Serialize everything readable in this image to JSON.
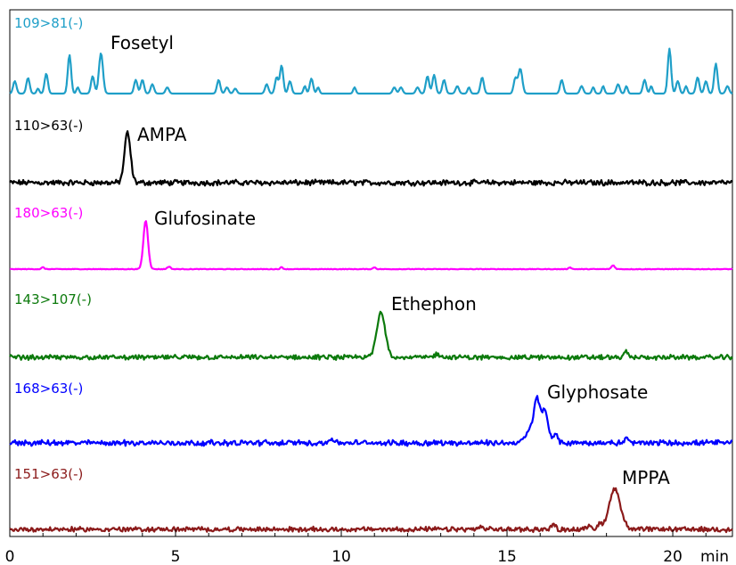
{
  "chart_data": {
    "type": "line",
    "x_unit": "min",
    "xlim": [
      0,
      21.8
    ],
    "x_ticks": [
      0,
      5,
      10,
      15,
      20
    ],
    "x_minor_ticks": [
      1,
      2,
      3,
      4,
      6,
      7,
      8,
      9,
      11,
      12,
      13,
      14,
      16,
      17,
      18,
      19,
      21
    ],
    "grid": false,
    "traces": [
      {
        "transition": "109>81(-)",
        "compound": "Fosetyl",
        "color": "#1F9FC8",
        "style": "sparse-noise",
        "peaks": [
          {
            "x": 0.15,
            "h": 0.2,
            "w": 0.05
          },
          {
            "x": 0.55,
            "h": 0.25,
            "w": 0.05
          },
          {
            "x": 0.85,
            "h": 0.08,
            "w": 0.04
          },
          {
            "x": 1.1,
            "h": 0.32,
            "w": 0.05
          },
          {
            "x": 1.8,
            "h": 0.62,
            "w": 0.05
          },
          {
            "x": 2.05,
            "h": 0.1,
            "w": 0.04
          },
          {
            "x": 2.5,
            "h": 0.28,
            "w": 0.05
          },
          {
            "x": 2.75,
            "h": 0.65,
            "w": 0.06
          },
          {
            "x": 3.8,
            "h": 0.22,
            "w": 0.05
          },
          {
            "x": 4.0,
            "h": 0.22,
            "w": 0.05
          },
          {
            "x": 4.3,
            "h": 0.15,
            "w": 0.05
          },
          {
            "x": 4.75,
            "h": 0.1,
            "w": 0.05
          },
          {
            "x": 6.3,
            "h": 0.22,
            "w": 0.05
          },
          {
            "x": 6.55,
            "h": 0.1,
            "w": 0.05
          },
          {
            "x": 6.8,
            "h": 0.08,
            "w": 0.05
          },
          {
            "x": 7.75,
            "h": 0.15,
            "w": 0.05
          },
          {
            "x": 8.05,
            "h": 0.26,
            "w": 0.05
          },
          {
            "x": 8.2,
            "h": 0.45,
            "w": 0.05
          },
          {
            "x": 8.45,
            "h": 0.2,
            "w": 0.05
          },
          {
            "x": 8.9,
            "h": 0.12,
            "w": 0.04
          },
          {
            "x": 9.1,
            "h": 0.24,
            "w": 0.05
          },
          {
            "x": 9.3,
            "h": 0.1,
            "w": 0.04
          },
          {
            "x": 10.4,
            "h": 0.1,
            "w": 0.04
          },
          {
            "x": 11.6,
            "h": 0.1,
            "w": 0.05
          },
          {
            "x": 11.8,
            "h": 0.1,
            "w": 0.05
          },
          {
            "x": 12.3,
            "h": 0.1,
            "w": 0.05
          },
          {
            "x": 12.6,
            "h": 0.28,
            "w": 0.05
          },
          {
            "x": 12.8,
            "h": 0.3,
            "w": 0.05
          },
          {
            "x": 13.1,
            "h": 0.22,
            "w": 0.05
          },
          {
            "x": 13.5,
            "h": 0.12,
            "w": 0.05
          },
          {
            "x": 13.85,
            "h": 0.1,
            "w": 0.04
          },
          {
            "x": 14.25,
            "h": 0.26,
            "w": 0.05
          },
          {
            "x": 15.25,
            "h": 0.24,
            "w": 0.05
          },
          {
            "x": 15.4,
            "h": 0.4,
            "w": 0.06
          },
          {
            "x": 16.65,
            "h": 0.22,
            "w": 0.05
          },
          {
            "x": 17.25,
            "h": 0.12,
            "w": 0.05
          },
          {
            "x": 17.6,
            "h": 0.1,
            "w": 0.04
          },
          {
            "x": 17.9,
            "h": 0.12,
            "w": 0.04
          },
          {
            "x": 18.35,
            "h": 0.15,
            "w": 0.05
          },
          {
            "x": 18.6,
            "h": 0.12,
            "w": 0.04
          },
          {
            "x": 19.15,
            "h": 0.22,
            "w": 0.05
          },
          {
            "x": 19.35,
            "h": 0.12,
            "w": 0.04
          },
          {
            "x": 19.9,
            "h": 0.72,
            "w": 0.05
          },
          {
            "x": 20.15,
            "h": 0.2,
            "w": 0.05
          },
          {
            "x": 20.4,
            "h": 0.12,
            "w": 0.04
          },
          {
            "x": 20.75,
            "h": 0.26,
            "w": 0.05
          },
          {
            "x": 21.0,
            "h": 0.2,
            "w": 0.05
          },
          {
            "x": 21.3,
            "h": 0.48,
            "w": 0.05
          },
          {
            "x": 21.65,
            "h": 0.12,
            "w": 0.05
          }
        ]
      },
      {
        "transition": "110>63(-)",
        "compound": "AMPA",
        "color": "#000000",
        "style": "noise",
        "noise": 0.035,
        "peaks": [
          {
            "x": 3.55,
            "h": 0.8,
            "w": 0.09
          }
        ]
      },
      {
        "transition": "180>63(-)",
        "compound": "Glufosinate",
        "color": "#FF00FF",
        "style": "flat-noise",
        "noise": 0.01,
        "peaks": [
          {
            "x": 4.1,
            "h": 0.78,
            "w": 0.07
          },
          {
            "x": 18.2,
            "h": 0.06,
            "w": 0.05
          },
          {
            "x": 1.0,
            "h": 0.03,
            "w": 0.04
          },
          {
            "x": 4.8,
            "h": 0.04,
            "w": 0.05
          },
          {
            "x": 8.2,
            "h": 0.03,
            "w": 0.04
          },
          {
            "x": 11.0,
            "h": 0.03,
            "w": 0.04
          },
          {
            "x": 16.9,
            "h": 0.03,
            "w": 0.04
          }
        ]
      },
      {
        "transition": "143>107(-)",
        "compound": "Ethephon",
        "color": "#0C7A0C",
        "style": "noise",
        "noise": 0.03,
        "peaks": [
          {
            "x": 11.2,
            "h": 0.72,
            "w": 0.13
          },
          {
            "x": 12.9,
            "h": 0.05,
            "w": 0.1
          },
          {
            "x": 18.6,
            "h": 0.1,
            "w": 0.05
          }
        ]
      },
      {
        "transition": "168>63(-)",
        "compound": "Glyphosate",
        "color": "#0000FF",
        "style": "noise",
        "noise": 0.035,
        "peaks": [
          {
            "x": 15.9,
            "h": 0.7,
            "w": 0.1
          },
          {
            "x": 16.15,
            "h": 0.5,
            "w": 0.09
          },
          {
            "x": 15.65,
            "h": 0.15,
            "w": 0.12
          },
          {
            "x": 16.45,
            "h": 0.12,
            "w": 0.08
          },
          {
            "x": 9.7,
            "h": 0.08,
            "w": 0.06
          },
          {
            "x": 18.6,
            "h": 0.08,
            "w": 0.05
          }
        ]
      },
      {
        "transition": "151>63(-)",
        "compound": "MPPA",
        "color": "#8B1A1A",
        "style": "noise",
        "noise": 0.03,
        "peaks": [
          {
            "x": 18.25,
            "h": 0.65,
            "w": 0.17
          },
          {
            "x": 17.5,
            "h": 0.07,
            "w": 0.06
          },
          {
            "x": 17.8,
            "h": 0.08,
            "w": 0.06
          },
          {
            "x": 16.4,
            "h": 0.08,
            "w": 0.06
          },
          {
            "x": 14.2,
            "h": 0.04,
            "w": 0.06
          }
        ]
      }
    ]
  }
}
